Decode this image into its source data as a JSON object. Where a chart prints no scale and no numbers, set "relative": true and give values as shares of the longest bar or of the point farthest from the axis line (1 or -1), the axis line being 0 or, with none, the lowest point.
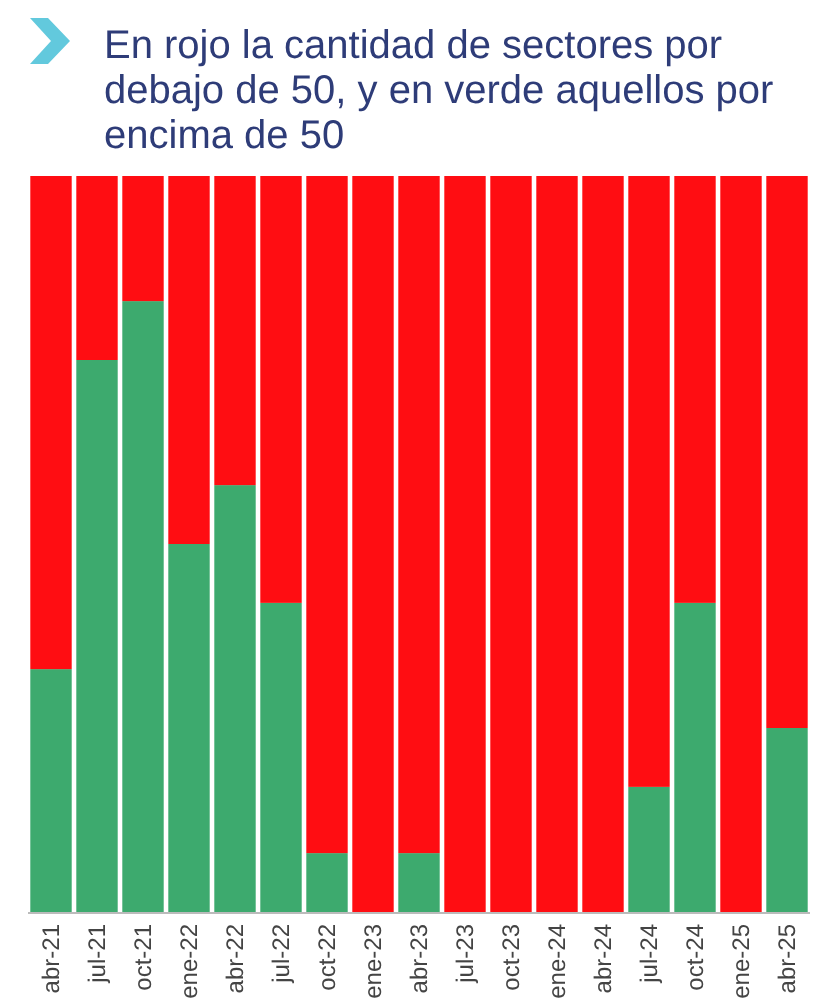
{
  "chart_data": {
    "type": "bar",
    "stacked": true,
    "relative": true,
    "title": "En rojo la cantidad de sectores por debajo de 50, y en verde aquellos por encima de 50",
    "categories": [
      "abr-21",
      "jul-21",
      "oct-21",
      "ene-22",
      "abr-22",
      "jul-22",
      "oct-22",
      "ene-23",
      "abr-23",
      "jul-23",
      "oct-23",
      "ene-24",
      "abr-24",
      "jul-24",
      "oct-24",
      "ene-25",
      "abr-25"
    ],
    "series": [
      {
        "color": "#3daa6e",
        "values": [
          0.33,
          0.75,
          0.83,
          0.5,
          0.58,
          0.42,
          0.08,
          0,
          0.08,
          0,
          0,
          0,
          0,
          0.17,
          0.42,
          0,
          0.25
        ]
      },
      {
        "color": "#ff0d12",
        "values": [
          0.67,
          0.25,
          0.17,
          0.5,
          0.42,
          0.58,
          0.92,
          1,
          0.92,
          1,
          1,
          1,
          1,
          0.83,
          0.58,
          1,
          0.75
        ]
      }
    ]
  }
}
